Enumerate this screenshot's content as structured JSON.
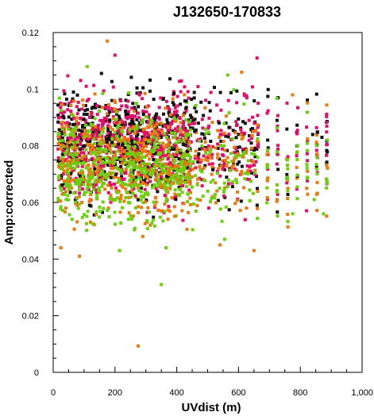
{
  "chart_data": {
    "type": "scatter",
    "title": "J132650-170833",
    "xlabel": "UVdist (m)",
    "ylabel": "Amp:corrected",
    "xlim": [
      0,
      1000
    ],
    "ylim": [
      0,
      0.12
    ],
    "x_ticks": [
      0,
      200,
      400,
      600,
      800,
      1000
    ],
    "x_tick_labels": [
      "0",
      "200",
      "400",
      "600",
      "800",
      "1,000"
    ],
    "y_ticks": [
      0,
      0.02,
      0.04,
      0.06,
      0.08,
      0.1,
      0.12
    ],
    "y_tick_labels": [
      "0",
      "0.02",
      "0.04",
      "0.06",
      "0.08",
      "0.1",
      "0.12"
    ],
    "grid": false,
    "series_colors": [
      "#111111",
      "#e0106a",
      "#e87a10",
      "#6cd010"
    ],
    "outliers": [
      {
        "x": 175,
        "y": 0.117,
        "color": "#e87a10"
      },
      {
        "x": 275,
        "y": 0.0093,
        "color": "#e87a10"
      },
      {
        "x": 350,
        "y": 0.031,
        "color": "#6cd010"
      },
      {
        "x": 85,
        "y": 0.041,
        "color": "#e87a10"
      },
      {
        "x": 650,
        "y": 0.043,
        "color": "#e87a10"
      },
      {
        "x": 25,
        "y": 0.044,
        "color": "#e87a10"
      },
      {
        "x": 660,
        "y": 0.111,
        "color": "#e0106a"
      },
      {
        "x": 775,
        "y": 0.098,
        "color": "#e87a10"
      },
      {
        "x": 875,
        "y": 0.056,
        "color": "#6cd010"
      },
      {
        "x": 870,
        "y": 0.083,
        "color": "#111111"
      },
      {
        "x": 840,
        "y": 0.084,
        "color": "#111111"
      },
      {
        "x": 845,
        "y": 0.061,
        "color": "#6cd010"
      },
      {
        "x": 775,
        "y": 0.056,
        "color": "#6cd010"
      },
      {
        "x": 110,
        "y": 0.108,
        "color": "#6cd010"
      },
      {
        "x": 200,
        "y": 0.112,
        "color": "#e0106a"
      },
      {
        "x": 610,
        "y": 0.106,
        "color": "#e87a10"
      },
      {
        "x": 565,
        "y": 0.105,
        "color": "#6cd010"
      },
      {
        "x": 215,
        "y": 0.043,
        "color": "#6cd010"
      },
      {
        "x": 290,
        "y": 0.048,
        "color": "#e87a10"
      },
      {
        "x": 555,
        "y": 0.047,
        "color": "#6cd010"
      },
      {
        "x": 540,
        "y": 0.045,
        "color": "#e87a10"
      },
      {
        "x": 365,
        "y": 0.044,
        "color": "#6cd010"
      }
    ],
    "bulk": {
      "count": 2600,
      "x_range": [
        15,
        900
      ],
      "y_center": 0.074,
      "y_spread": 0.0095
    }
  }
}
